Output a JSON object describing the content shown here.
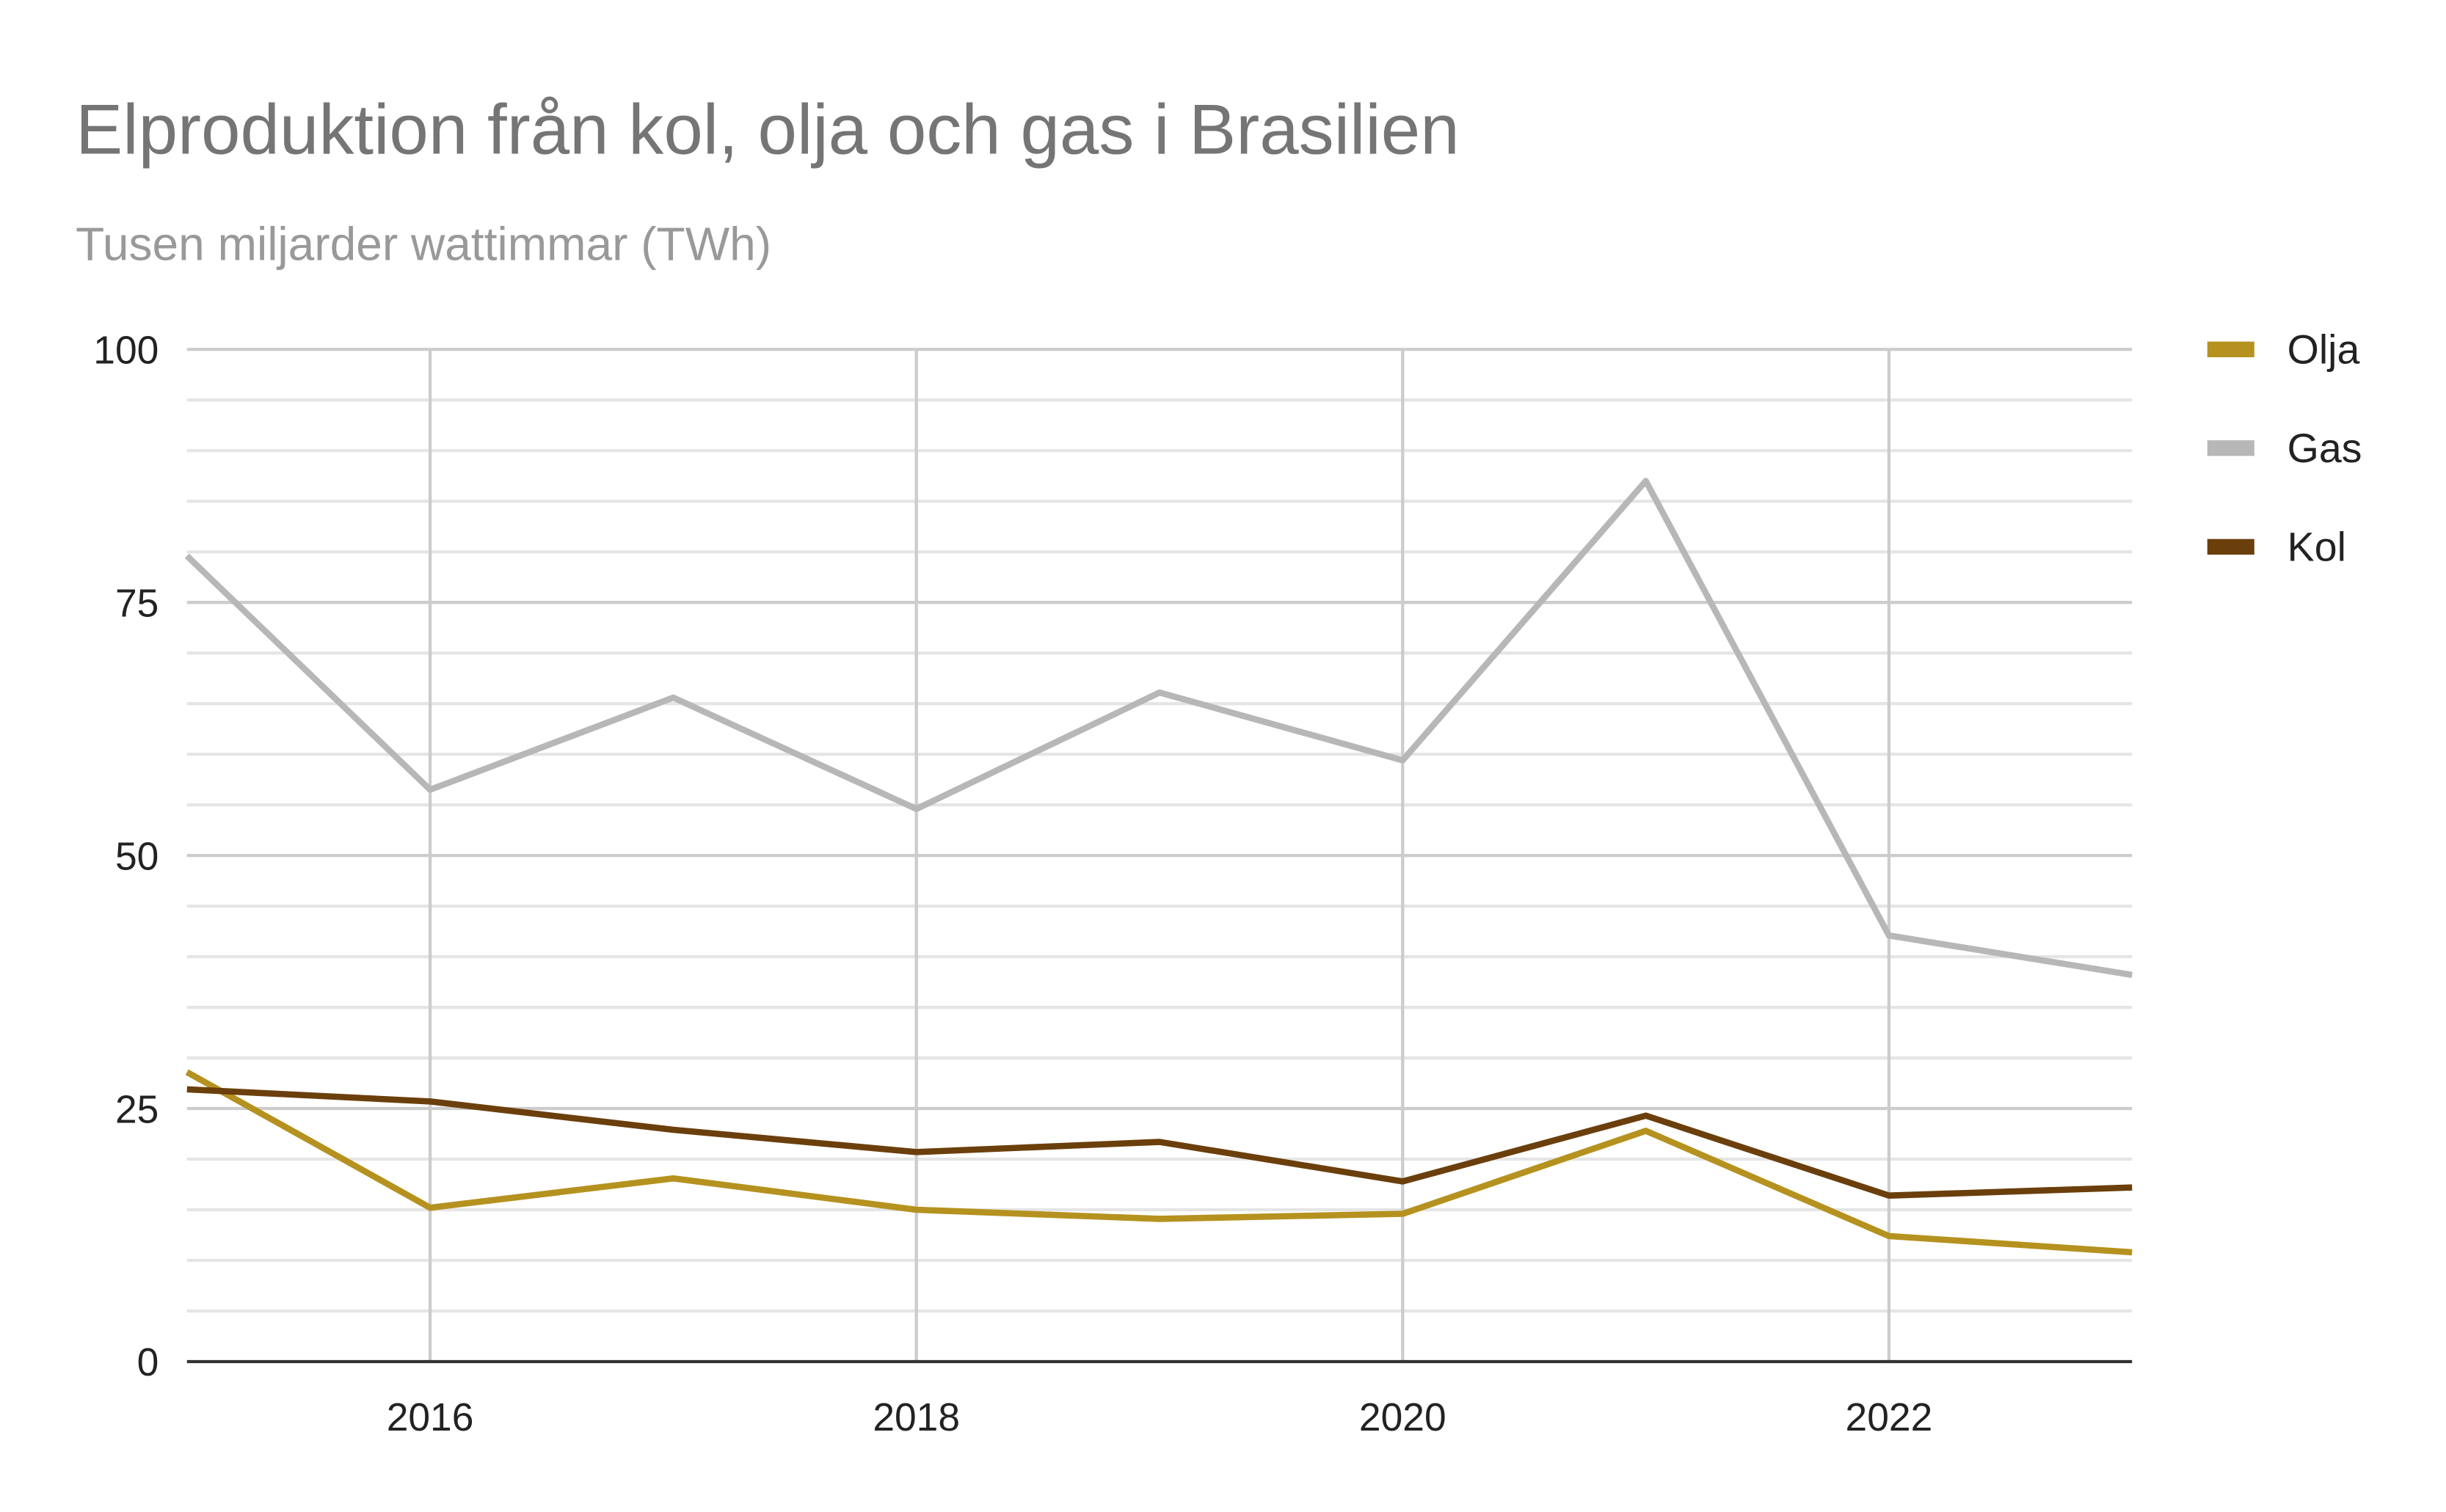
{
  "chart_data": {
    "type": "line",
    "title": "Elproduktion från kol, olja och gas i Brasilien",
    "subtitle": "Tusen miljarder wattimmar (TWh)",
    "xlabel": "",
    "ylabel": "",
    "x": [
      2015,
      2016,
      2017,
      2018,
      2019,
      2020,
      2021,
      2022,
      2023
    ],
    "xlim": [
      2015,
      2023
    ],
    "ylim": [
      0,
      100
    ],
    "x_ticks": [
      2016,
      2018,
      2020,
      2022
    ],
    "x_tick_labels": [
      "2016",
      "2018",
      "2020",
      "2022"
    ],
    "y_ticks": [
      0,
      25,
      50,
      75,
      100
    ],
    "y_tick_labels": [
      "0",
      "25",
      "50",
      "75",
      "100"
    ],
    "grid": true,
    "legend_position": "right",
    "series": [
      {
        "name": "Olja",
        "color": "#b5921f",
        "values": [
          28.6,
          15.2,
          18.1,
          15.0,
          14.1,
          14.6,
          22.8,
          12.4,
          10.8
        ]
      },
      {
        "name": "Gas",
        "color": "#b7b7b7",
        "values": [
          79.6,
          56.5,
          65.6,
          54.6,
          66.1,
          59.4,
          87.0,
          42.1,
          38.2
        ]
      },
      {
        "name": "Kol",
        "color": "#6b3f0c",
        "values": [
          26.9,
          25.7,
          22.9,
          20.7,
          21.7,
          17.8,
          24.3,
          16.4,
          17.2
        ]
      }
    ]
  }
}
